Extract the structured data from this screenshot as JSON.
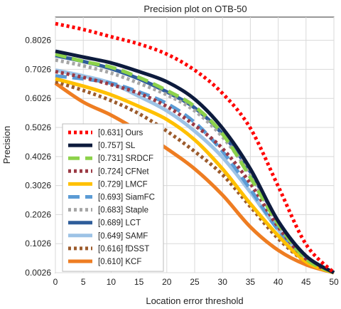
{
  "chart_data": {
    "type": "line",
    "title": "Precision plot on OTB-50",
    "xlabel": "Location error threshold",
    "ylabel": "Precision",
    "xlim": [
      0,
      50
    ],
    "ylim": [
      0.0026,
      0.8826
    ],
    "x_ticks": [
      "0",
      "5",
      "10",
      "15",
      "20",
      "25",
      "30",
      "35",
      "40",
      "45",
      "50"
    ],
    "y_ticks": [
      "0.0026",
      "0.1026",
      "0.2026",
      "0.3026",
      "0.4026",
      "0.5026",
      "0.6026",
      "0.7026",
      "0.8026"
    ],
    "grid": true,
    "legend_position": "bottom-left",
    "x": [
      0,
      5,
      10,
      15,
      20,
      25,
      30,
      35,
      40,
      45,
      50
    ],
    "series": [
      {
        "name": "[0.631] Ours",
        "color": "#ff0000",
        "dash": "dot",
        "values": [
          0.86,
          0.84,
          0.815,
          0.79,
          0.755,
          0.7,
          0.62,
          0.5,
          0.3,
          0.1,
          0.0026
        ]
      },
      {
        "name": "[0.757] SL",
        "color": "#0d1b3d",
        "dash": "solid",
        "values": [
          0.765,
          0.745,
          0.725,
          0.695,
          0.66,
          0.6,
          0.5,
          0.36,
          0.18,
          0.06,
          0.0026
        ]
      },
      {
        "name": "[0.731] SRDCF",
        "color": "#8cd24a",
        "dash": "dash",
        "values": [
          0.755,
          0.73,
          0.71,
          0.675,
          0.63,
          0.575,
          0.48,
          0.33,
          0.17,
          0.05,
          0.0026
        ]
      },
      {
        "name": "[0.724] CFNet",
        "color": "#9b3a45",
        "dash": "dot",
        "values": [
          0.695,
          0.675,
          0.65,
          0.62,
          0.575,
          0.51,
          0.43,
          0.31,
          0.16,
          0.05,
          0.0026
        ]
      },
      {
        "name": "[0.729] LMCF",
        "color": "#ffc000",
        "dash": "solid",
        "values": [
          0.67,
          0.645,
          0.615,
          0.575,
          0.53,
          0.46,
          0.36,
          0.24,
          0.13,
          0.04,
          0.0026
        ]
      },
      {
        "name": "[0.693] SiamFC",
        "color": "#5b9bd5",
        "dash": "dash",
        "values": [
          0.68,
          0.67,
          0.655,
          0.625,
          0.585,
          0.52,
          0.42,
          0.29,
          0.15,
          0.05,
          0.0026
        ]
      },
      {
        "name": "[0.683] Staple",
        "color": "#a6a6a6",
        "dash": "dot",
        "values": [
          0.735,
          0.715,
          0.69,
          0.655,
          0.615,
          0.56,
          0.47,
          0.34,
          0.17,
          0.05,
          0.0026
        ]
      },
      {
        "name": "[0.689] LCT",
        "color": "#2f5d9a",
        "dash": "solid",
        "values": [
          0.75,
          0.73,
          0.705,
          0.67,
          0.625,
          0.57,
          0.48,
          0.35,
          0.18,
          0.06,
          0.0026
        ]
      },
      {
        "name": "[0.649] SAMF",
        "color": "#9dc3e6",
        "dash": "solid",
        "values": [
          0.7,
          0.68,
          0.655,
          0.61,
          0.56,
          0.49,
          0.4,
          0.28,
          0.15,
          0.05,
          0.0026
        ]
      },
      {
        "name": "[0.616] fDSST",
        "color": "#9c5b2c",
        "dash": "dot",
        "values": [
          0.66,
          0.63,
          0.595,
          0.55,
          0.49,
          0.42,
          0.34,
          0.23,
          0.12,
          0.04,
          0.0026
        ]
      },
      {
        "name": "[0.610] KCF",
        "color": "#ee7d22",
        "dash": "solid",
        "values": [
          0.655,
          0.59,
          0.545,
          0.49,
          0.43,
          0.36,
          0.27,
          0.16,
          0.08,
          0.03,
          0.0026
        ]
      }
    ]
  }
}
